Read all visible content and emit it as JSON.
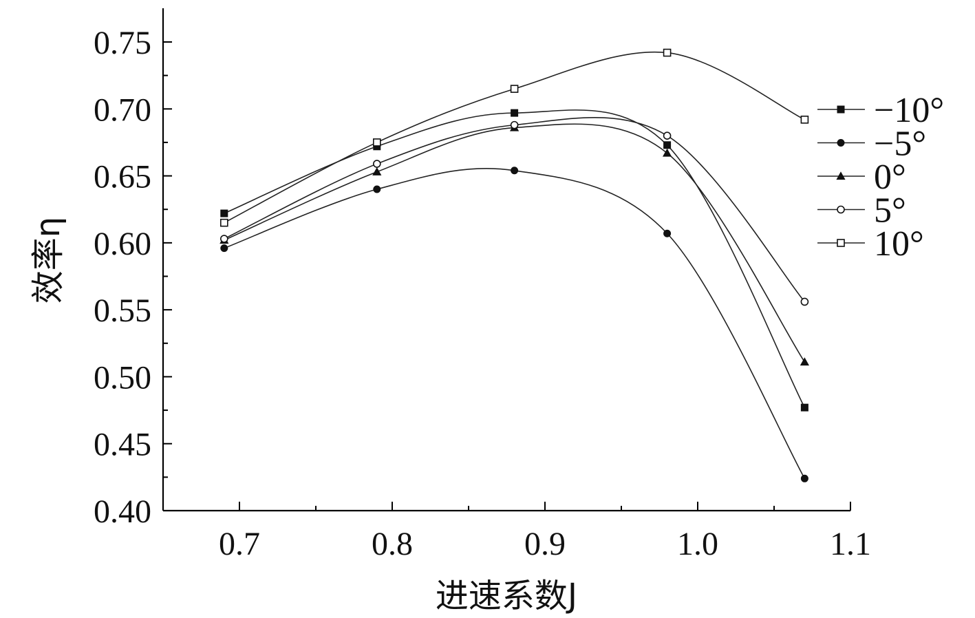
{
  "chart_data": {
    "type": "line",
    "xlabel": "进速系数J",
    "ylabel": "效率η",
    "xlim": [
      0.65,
      1.1
    ],
    "ylim": [
      0.4,
      0.775
    ],
    "xticks": [
      0.7,
      0.8,
      0.9,
      1.0,
      1.1
    ],
    "xtick_labels": [
      "0.7",
      "0.8",
      "0.9",
      "1.0",
      "1.1"
    ],
    "xminor": [
      0.75,
      0.85,
      0.95,
      1.05
    ],
    "yticks": [
      0.4,
      0.45,
      0.5,
      0.55,
      0.6,
      0.65,
      0.7,
      0.75
    ],
    "ytick_labels": [
      "0.40",
      "0.45",
      "0.50",
      "0.55",
      "0.60",
      "0.65",
      "0.70",
      "0.75"
    ],
    "yminor": [
      0.425,
      0.475,
      0.525,
      0.575,
      0.625,
      0.675,
      0.725
    ],
    "legend_position": "right",
    "x": [
      0.69,
      0.79,
      0.88,
      0.98,
      1.07
    ],
    "series": [
      {
        "name": "−10°",
        "marker": "square-filled",
        "values": [
          0.622,
          0.672,
          0.697,
          0.673,
          0.477
        ]
      },
      {
        "name": "−5°",
        "marker": "circle-filled",
        "values": [
          0.596,
          0.64,
          0.654,
          0.607,
          0.424
        ]
      },
      {
        "name": "0°",
        "marker": "triangle-filled",
        "values": [
          0.602,
          0.653,
          0.686,
          0.667,
          0.511
        ]
      },
      {
        "name": "5°",
        "marker": "circle-open",
        "values": [
          0.603,
          0.659,
          0.688,
          0.68,
          0.556
        ]
      },
      {
        "name": "10°",
        "marker": "square-open",
        "values": [
          0.615,
          0.675,
          0.715,
          0.742,
          0.692
        ]
      }
    ]
  }
}
